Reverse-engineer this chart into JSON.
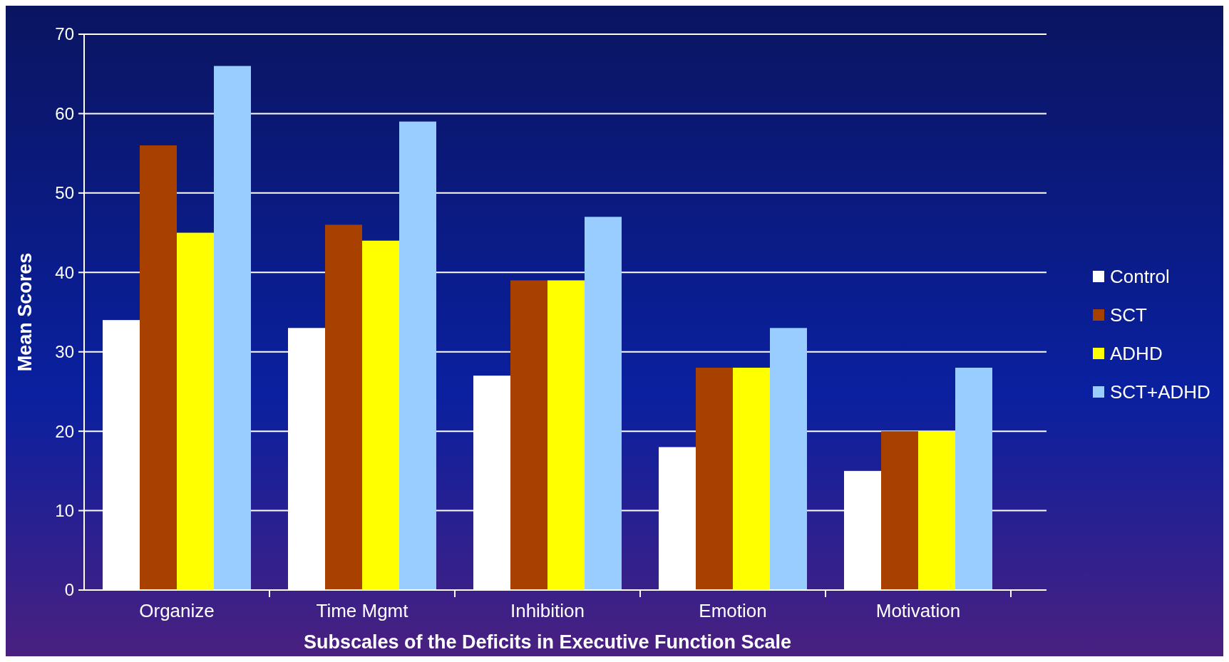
{
  "chart_data": {
    "type": "bar",
    "xlabel": "Subscales of the Deficits in Executive Function Scale",
    "ylabel": "Mean Scores",
    "categories": [
      "Organize",
      "Time Mgmt",
      "Inhibition",
      "Emotion",
      "Motivation"
    ],
    "series": [
      {
        "name": "Control",
        "color": "#ffffff",
        "values": [
          34,
          33,
          27,
          18,
          15
        ]
      },
      {
        "name": "SCT",
        "color": "#a84000",
        "values": [
          56,
          46,
          39,
          28,
          20
        ]
      },
      {
        "name": "ADHD",
        "color": "#ffff00",
        "values": [
          45,
          44,
          39,
          28,
          20
        ]
      },
      {
        "name": "SCT+ADHD",
        "color": "#99ccff",
        "values": [
          66,
          59,
          47,
          33,
          28
        ]
      }
    ],
    "ylim": [
      0,
      70
    ],
    "yticks": [
      0,
      10,
      20,
      30,
      40,
      50,
      60,
      70
    ],
    "grid": "y",
    "legend": "right"
  }
}
